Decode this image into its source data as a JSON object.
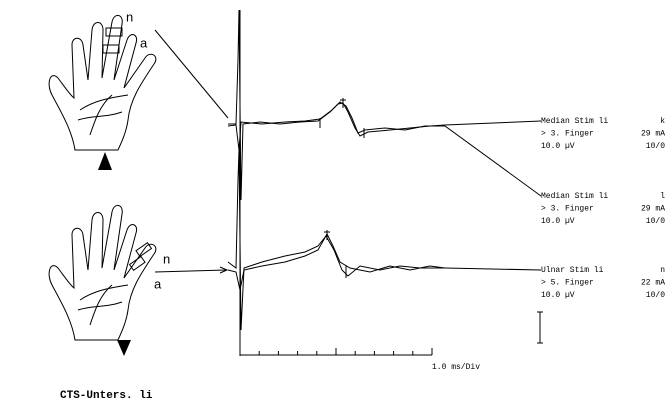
{
  "traces": [
    {
      "lines": [
        [
          "Median Stim li",
          "k"
        ],
        [
          "> 3. Finger",
          "29 mA"
        ],
        [
          "10.0 µV",
          "10/0"
        ]
      ]
    },
    {
      "lines": [
        [
          "Median Stim li",
          "l"
        ],
        [
          "> 3. Finger",
          "29 mA"
        ],
        [
          "10.0 µV",
          "10/0"
        ]
      ]
    },
    {
      "lines": [
        [
          "Ulnar Stim li",
          "n"
        ],
        [
          "> 5. Finger",
          "22 mA"
        ],
        [
          "10.0 µV",
          "10/0"
        ]
      ]
    }
  ],
  "time_scale": "1.0 ms/Div",
  "caption": "CTS-Unters. li",
  "hands": [
    {
      "labels": [
        "n",
        "a"
      ]
    },
    {
      "labels": [
        "n",
        "a"
      ]
    }
  ]
}
